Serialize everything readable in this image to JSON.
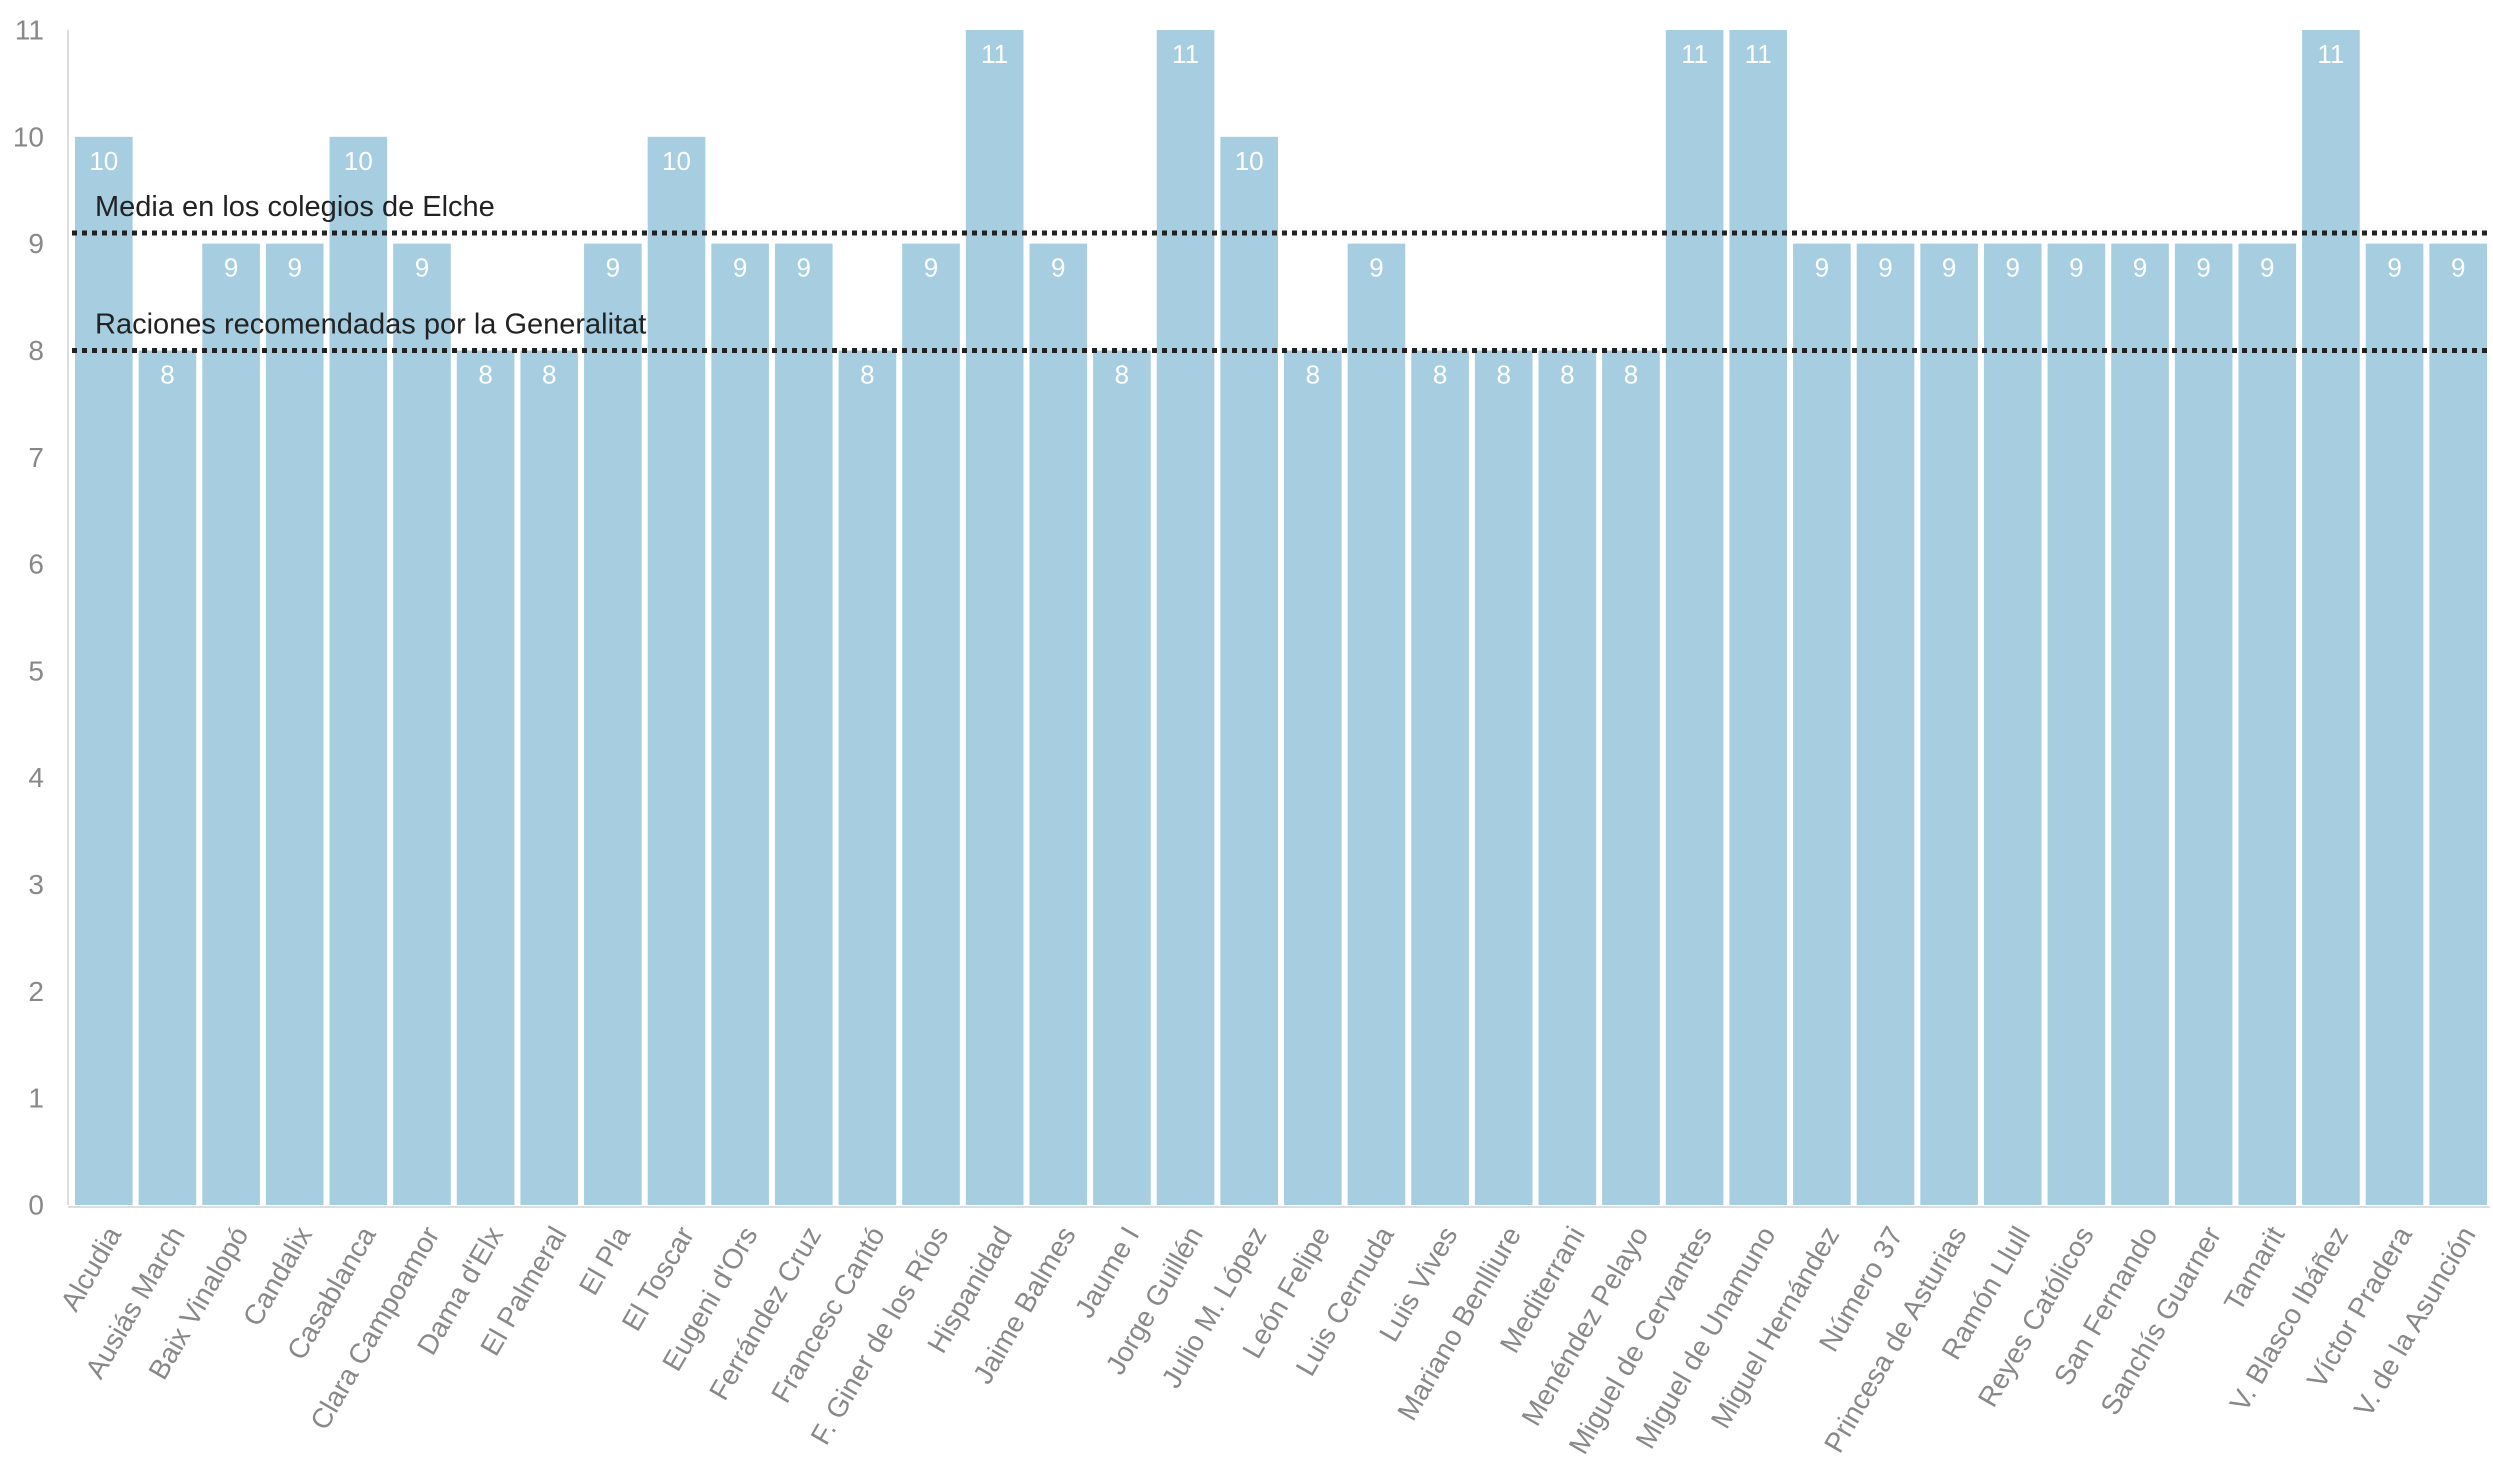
{
  "chart_data": {
    "type": "bar",
    "title": "",
    "xlabel": "",
    "ylabel": "",
    "ylim": [
      0,
      11
    ],
    "yticks": [
      0,
      1,
      2,
      3,
      4,
      5,
      6,
      7,
      8,
      9,
      10,
      11
    ],
    "grid": false,
    "bar_color": "#a6cde0",
    "categories": [
      "Alcudia",
      "Ausiás March",
      "Baix Vinalopó",
      "Candalix",
      "Casablanca",
      "Clara Campoamor",
      "Dama d'Elx",
      "El Palmeral",
      "El Pla",
      "El Toscar",
      "Eugeni d'Ors",
      "Ferrández Cruz",
      "Francesc Cantó",
      "F. Giner de los Ríos",
      "Hispanidad",
      "Jaime Balmes",
      "Jaume I",
      "Jorge Guillén",
      "Julio M. López",
      "León Felipe",
      "Luis Cernuda",
      "Luis Vives",
      "Mariano Benlliure",
      "Mediterrani",
      "Menéndez Pelayo",
      "Miguel de Cervantes",
      "Miguel de Unamuno",
      "Miguel Hernández",
      "Número 37",
      "Princesa de Asturias",
      "Ramón Llull",
      "Reyes Católicos",
      "San Fernando",
      "Sanchís Guarner",
      "Tamarit",
      "V. Blasco Ibáñez",
      "Víctor Pradera",
      "V. de la Asunción"
    ],
    "values": [
      10,
      8,
      9,
      9,
      10,
      9,
      8,
      8,
      9,
      10,
      9,
      9,
      8,
      9,
      11,
      9,
      8,
      11,
      10,
      8,
      9,
      8,
      8,
      8,
      8,
      11,
      11,
      9,
      9,
      9,
      9,
      9,
      9,
      9,
      9,
      11,
      9,
      9
    ],
    "reference_lines": [
      {
        "label": "Media en los colegios de Elche",
        "value": 9.1
      },
      {
        "label": "Raciones recomendadas por la Generalitat",
        "value": 8
      }
    ]
  }
}
